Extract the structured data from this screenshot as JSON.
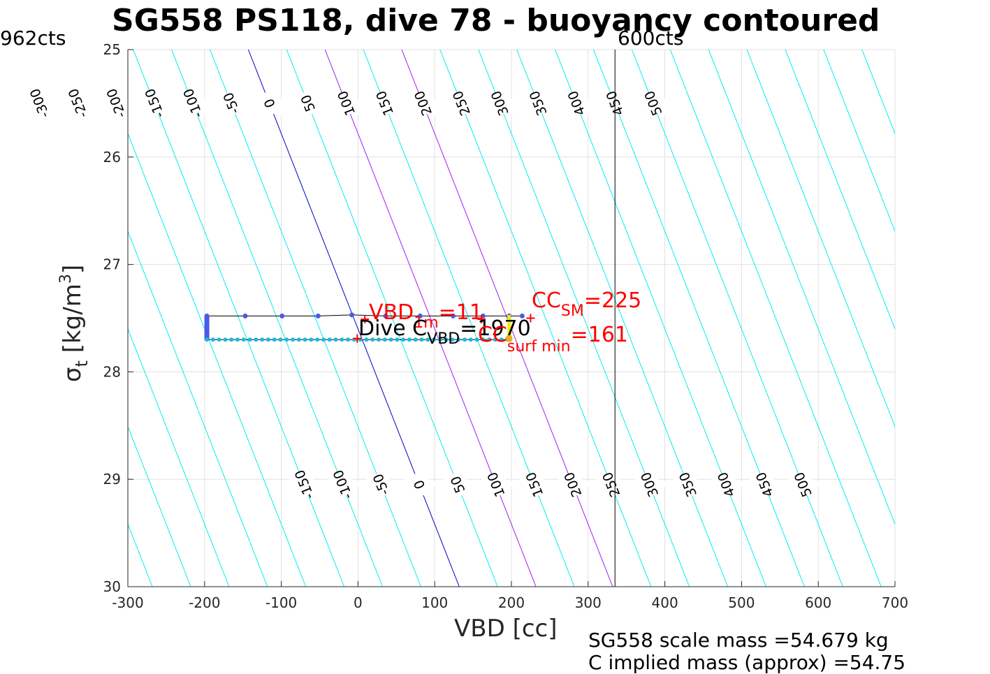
{
  "header": {
    "title": "SG558 PS118, dive 78 - buoyancy contoured",
    "cts_left": "962cts",
    "cts_right": "600cts"
  },
  "footer": {
    "scale_mass": "SG558 scale mass =54.679 kg",
    "implied_mass": "C   implied mass (approx) =54.75"
  },
  "annotations": {
    "vbd_1m_prefix": "VBD",
    "vbd_1m_sub": "1m",
    "vbd_1m_value": "=11",
    "dive_prefix": "Dive C",
    "dive_sub": "VBD",
    "dive_value": "=1970",
    "cc_sm_prefix": "CC",
    "cc_sm_sub": "SM",
    "cc_sm_value": "=225",
    "cc_surf_prefix": "CC",
    "cc_surf_sub": "surf min",
    "cc_surf_value": "=161"
  },
  "colors": {
    "contour": "#00eeee",
    "zero_contour": "#0000cc",
    "purple_contour": "#a020f0",
    "grid": "#e0e0e0",
    "axis": "#262626",
    "dive_down": "#4a5ae8",
    "dive_up": "#22b8d8",
    "marker": "#ff0000",
    "highlight": "#f0f000",
    "highlight2": "#e8b020"
  },
  "chart_data": {
    "type": "line",
    "title": "SG558 PS118, dive 78 - buoyancy contoured",
    "xlabel": "VBD [cc]",
    "ylabel": "σt [kg/m3]",
    "xlim": [
      -300,
      700
    ],
    "ylim": [
      30,
      25
    ],
    "xticks": [
      -300,
      -200,
      -100,
      0,
      100,
      200,
      300,
      400,
      500,
      600,
      700
    ],
    "yticks": [
      25,
      26,
      27,
      28,
      29,
      30
    ],
    "grid": true,
    "contour_slope_cc_per_sigma": 55,
    "contours": {
      "levels": [
        -300,
        -250,
        -200,
        -150,
        -100,
        -50,
        0,
        50,
        100,
        150,
        200,
        250,
        300,
        350,
        400,
        450,
        500
      ],
      "purple_levels": [
        100,
        200
      ],
      "zero_level": 0,
      "top_labels": [
        "-300",
        "-250",
        "-200",
        "-150",
        "-100",
        "-50",
        "0",
        "50",
        "100",
        "150",
        "200",
        "250",
        "300",
        "350",
        "400",
        "450",
        "500"
      ],
      "bottom_labels": [
        "-150",
        "-100",
        "-50",
        "0",
        "50",
        "100",
        "150",
        "200",
        "250",
        "300",
        "350",
        "400",
        "450",
        "500"
      ]
    },
    "vertical_line_x": 335,
    "series": [
      {
        "name": "dive",
        "x": [
          -197,
          -147,
          -99,
          -52,
          -8,
          36,
          81,
          124,
          163,
          197,
          214
        ],
        "y": [
          27.48,
          27.48,
          27.48,
          27.48,
          27.47,
          27.48,
          27.48,
          27.48,
          27.48,
          27.48,
          27.48
        ]
      },
      {
        "name": "climb",
        "x_start": -197,
        "x_end": 197,
        "x_step": 8,
        "y": 27.7
      },
      {
        "name": "descent_column",
        "x": -197,
        "y_start": 27.48,
        "y_end": 27.7
      }
    ],
    "markers": [
      {
        "name": "vbd-1m-marker",
        "x": 9,
        "y": 27.51
      },
      {
        "name": "dive-cvbd-marker",
        "x": -1,
        "y": 27.69
      },
      {
        "name": "cc-sm-marker",
        "x": 225,
        "y": 27.5
      },
      {
        "name": "cc-surf-min-marker",
        "x": 161,
        "y": 27.51
      }
    ]
  }
}
